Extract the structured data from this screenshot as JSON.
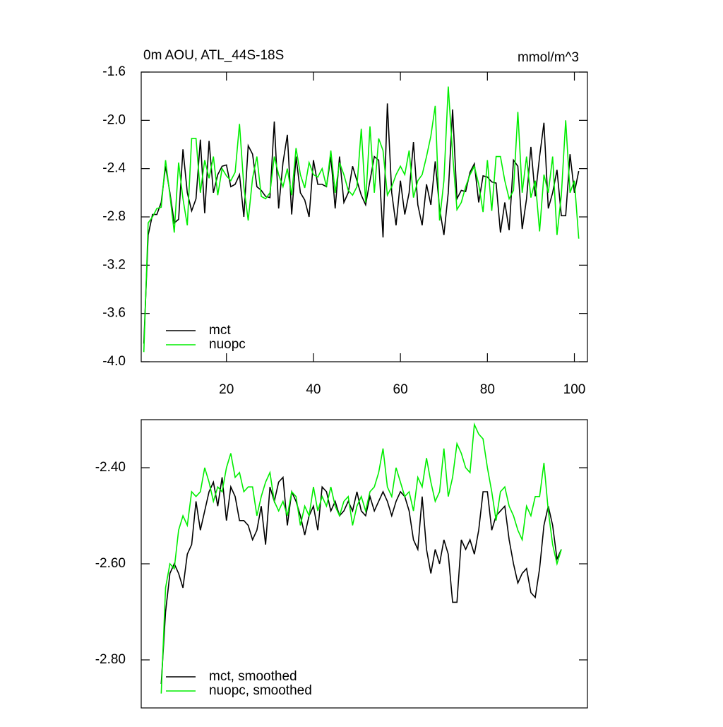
{
  "chart_data": [
    {
      "type": "line",
      "title": "0m AOU, ATL_44S-18S",
      "units": "mmol/m^3",
      "legend": "lower left",
      "xlim": [
        0.4,
        103
      ],
      "xticks": [
        20,
        40,
        60,
        80,
        100
      ],
      "ylim": [
        -4.0,
        -1.6
      ],
      "yticks": [
        -1.6,
        {
          "value": -2.0,
          "label": "-2.0"
        },
        -2.4,
        -2.8,
        -3.2,
        -3.6,
        {
          "value": -4.0,
          "label": "-4.0"
        }
      ],
      "x": [
        1,
        2,
        3,
        4,
        5,
        6,
        7,
        8,
        9,
        10,
        11,
        12,
        13,
        14,
        15,
        16,
        17,
        18,
        19,
        20,
        21,
        22,
        23,
        24,
        25,
        26,
        27,
        28,
        29,
        30,
        31,
        32,
        33,
        34,
        35,
        36,
        37,
        38,
        39,
        40,
        41,
        42,
        43,
        44,
        45,
        46,
        47,
        48,
        49,
        50,
        51,
        52,
        53,
        54,
        55,
        56,
        57,
        58,
        59,
        60,
        61,
        62,
        63,
        64,
        65,
        66,
        67,
        68,
        69,
        70,
        71,
        72,
        73,
        74,
        75,
        76,
        77,
        78,
        79,
        80,
        81,
        82,
        83,
        84,
        85,
        86,
        87,
        88,
        89,
        90,
        91,
        92,
        93,
        94,
        95,
        96,
        97,
        98,
        99,
        100,
        101
      ],
      "series": [
        {
          "name": "mct",
          "color": "#000000",
          "values": [
            -3.85,
            -2.95,
            -2.78,
            -2.78,
            -2.68,
            -2.38,
            -2.6,
            -2.85,
            -2.82,
            -2.24,
            -2.6,
            -2.75,
            -2.65,
            -2.16,
            -2.77,
            -2.17,
            -2.6,
            -2.45,
            -2.38,
            -2.37,
            -2.55,
            -2.53,
            -2.45,
            -2.8,
            -2.21,
            -2.28,
            -2.55,
            -2.58,
            -2.63,
            -2.64,
            -2.01,
            -2.73,
            -2.35,
            -2.12,
            -2.78,
            -2.3,
            -2.6,
            -2.66,
            -2.8,
            -2.33,
            -2.53,
            -2.53,
            -2.55,
            -2.3,
            -2.73,
            -2.3,
            -2.68,
            -2.6,
            -2.38,
            -2.5,
            -2.62,
            -2.7,
            -2.5,
            -2.3,
            -2.33,
            -2.97,
            -1.86,
            -2.6,
            -2.87,
            -2.5,
            -2.78,
            -2.6,
            -2.18,
            -2.7,
            -2.87,
            -2.53,
            -2.7,
            -2.34,
            -2.73,
            -2.95,
            -2.6,
            -1.91,
            -2.65,
            -2.58,
            -2.59,
            -2.43,
            -2.36,
            -2.68,
            -2.46,
            -2.47,
            -2.51,
            -2.52,
            -2.93,
            -2.68,
            -2.91,
            -2.33,
            -2.38,
            -2.9,
            -2.65,
            -2.22,
            -2.63,
            -2.3,
            -2.02,
            -2.73,
            -2.6,
            -2.41,
            -2.79,
            -2.79,
            -2.28,
            -2.6,
            -2.42
          ]
        },
        {
          "name": "nuopc",
          "color": "#00ee00",
          "values": [
            -3.92,
            -2.85,
            -2.8,
            -2.73,
            -2.72,
            -2.33,
            -2.62,
            -2.93,
            -2.35,
            -2.65,
            -2.87,
            -2.15,
            -2.15,
            -2.6,
            -2.33,
            -2.48,
            -2.3,
            -2.62,
            -2.4,
            -2.46,
            -2.5,
            -2.43,
            -2.03,
            -2.55,
            -2.83,
            -2.48,
            -2.3,
            -2.63,
            -2.65,
            -2.6,
            -2.3,
            -2.45,
            -2.55,
            -2.4,
            -2.62,
            -2.23,
            -2.45,
            -2.56,
            -2.35,
            -2.45,
            -2.47,
            -2.4,
            -2.55,
            -2.25,
            -2.6,
            -2.35,
            -2.45,
            -2.58,
            -2.62,
            -2.55,
            -2.07,
            -2.68,
            -2.05,
            -2.6,
            -2.15,
            -2.25,
            -2.62,
            -2.55,
            -2.45,
            -2.38,
            -2.45,
            -2.25,
            -2.64,
            -2.5,
            -2.45,
            -2.3,
            -2.13,
            -1.88,
            -2.83,
            -2.5,
            -1.72,
            -2.28,
            -2.74,
            -2.68,
            -2.55,
            -2.45,
            -2.38,
            -2.53,
            -2.76,
            -2.33,
            -2.75,
            -2.3,
            -2.3,
            -2.5,
            -2.65,
            -2.58,
            -1.93,
            -2.6,
            -2.3,
            -2.64,
            -2.5,
            -2.92,
            -2.45,
            -2.6,
            -2.3,
            -2.95,
            -2.62,
            -2.0,
            -2.6,
            -2.5,
            -2.98
          ]
        }
      ]
    },
    {
      "type": "line",
      "legend": "lower left",
      "xlim": [
        0.4,
        103
      ],
      "ylim": [
        -2.9,
        -2.3
      ],
      "yticks": [
        {
          "value": -2.4,
          "label": "-2.40"
        },
        {
          "value": -2.6,
          "label": "-2.60"
        },
        {
          "value": -2.8,
          "label": "-2.80"
        }
      ],
      "x": [
        5,
        6,
        7,
        8,
        9,
        10,
        11,
        12,
        13,
        14,
        15,
        16,
        17,
        18,
        19,
        20,
        21,
        22,
        23,
        24,
        25,
        26,
        27,
        28,
        29,
        30,
        31,
        32,
        33,
        34,
        35,
        36,
        37,
        38,
        39,
        40,
        41,
        42,
        43,
        44,
        45,
        46,
        47,
        48,
        49,
        50,
        51,
        52,
        53,
        54,
        55,
        56,
        57,
        58,
        59,
        60,
        61,
        62,
        63,
        64,
        65,
        66,
        67,
        68,
        69,
        70,
        71,
        72,
        73,
        74,
        75,
        76,
        77,
        78,
        79,
        80,
        81,
        82,
        83,
        84,
        85,
        86,
        87,
        88,
        89,
        90,
        91,
        92,
        93,
        94,
        95,
        96,
        97
      ],
      "series": [
        {
          "name": "mct, smoothed",
          "color": "#000000",
          "values": [
            -2.85,
            -2.7,
            -2.62,
            -2.6,
            -2.62,
            -2.65,
            -2.58,
            -2.56,
            -2.47,
            -2.53,
            -2.49,
            -2.45,
            -2.43,
            -2.48,
            -2.42,
            -2.51,
            -2.44,
            -2.46,
            -2.51,
            -2.51,
            -2.52,
            -2.55,
            -2.53,
            -2.48,
            -2.56,
            -2.44,
            -2.47,
            -2.43,
            -2.42,
            -2.52,
            -2.45,
            -2.47,
            -2.5,
            -2.54,
            -2.5,
            -2.48,
            -2.53,
            -2.44,
            -2.45,
            -2.49,
            -2.47,
            -2.5,
            -2.49,
            -2.47,
            -2.49,
            -2.45,
            -2.49,
            -2.5,
            -2.46,
            -2.49,
            -2.47,
            -2.45,
            -2.47,
            -2.5,
            -2.47,
            -2.45,
            -2.46,
            -2.49,
            -2.55,
            -2.57,
            -2.46,
            -2.57,
            -2.62,
            -2.57,
            -2.6,
            -2.55,
            -2.58,
            -2.68,
            -2.68,
            -2.55,
            -2.57,
            -2.55,
            -2.58,
            -2.53,
            -2.45,
            -2.45,
            -2.53,
            -2.5,
            -2.49,
            -2.48,
            -2.55,
            -2.6,
            -2.64,
            -2.62,
            -2.61,
            -2.66,
            -2.67,
            -2.61,
            -2.52,
            -2.48,
            -2.52,
            -2.59,
            -2.57
          ]
        },
        {
          "name": "nuopc, smoothed",
          "color": "#00ee00",
          "values": [
            -2.87,
            -2.65,
            -2.6,
            -2.61,
            -2.53,
            -2.5,
            -2.52,
            -2.45,
            -2.46,
            -2.45,
            -2.4,
            -2.43,
            -2.47,
            -2.44,
            -2.45,
            -2.4,
            -2.37,
            -2.42,
            -2.41,
            -2.45,
            -2.44,
            -2.44,
            -2.5,
            -2.46,
            -2.43,
            -2.41,
            -2.47,
            -2.49,
            -2.47,
            -2.5,
            -2.45,
            -2.46,
            -2.52,
            -2.48,
            -2.5,
            -2.44,
            -2.49,
            -2.46,
            -2.48,
            -2.44,
            -2.48,
            -2.5,
            -2.47,
            -2.46,
            -2.52,
            -2.48,
            -2.46,
            -2.49,
            -2.45,
            -2.44,
            -2.41,
            -2.36,
            -2.44,
            -2.46,
            -2.4,
            -2.43,
            -2.46,
            -2.45,
            -2.49,
            -2.42,
            -2.44,
            -2.38,
            -2.43,
            -2.47,
            -2.45,
            -2.36,
            -2.46,
            -2.42,
            -2.35,
            -2.37,
            -2.4,
            -2.41,
            -2.31,
            -2.33,
            -2.34,
            -2.4,
            -2.45,
            -2.51,
            -2.45,
            -2.44,
            -2.48,
            -2.5,
            -2.53,
            -2.55,
            -2.48,
            -2.5,
            -2.46,
            -2.46,
            -2.39,
            -2.49,
            -2.56,
            -2.6,
            -2.57
          ]
        }
      ]
    }
  ]
}
